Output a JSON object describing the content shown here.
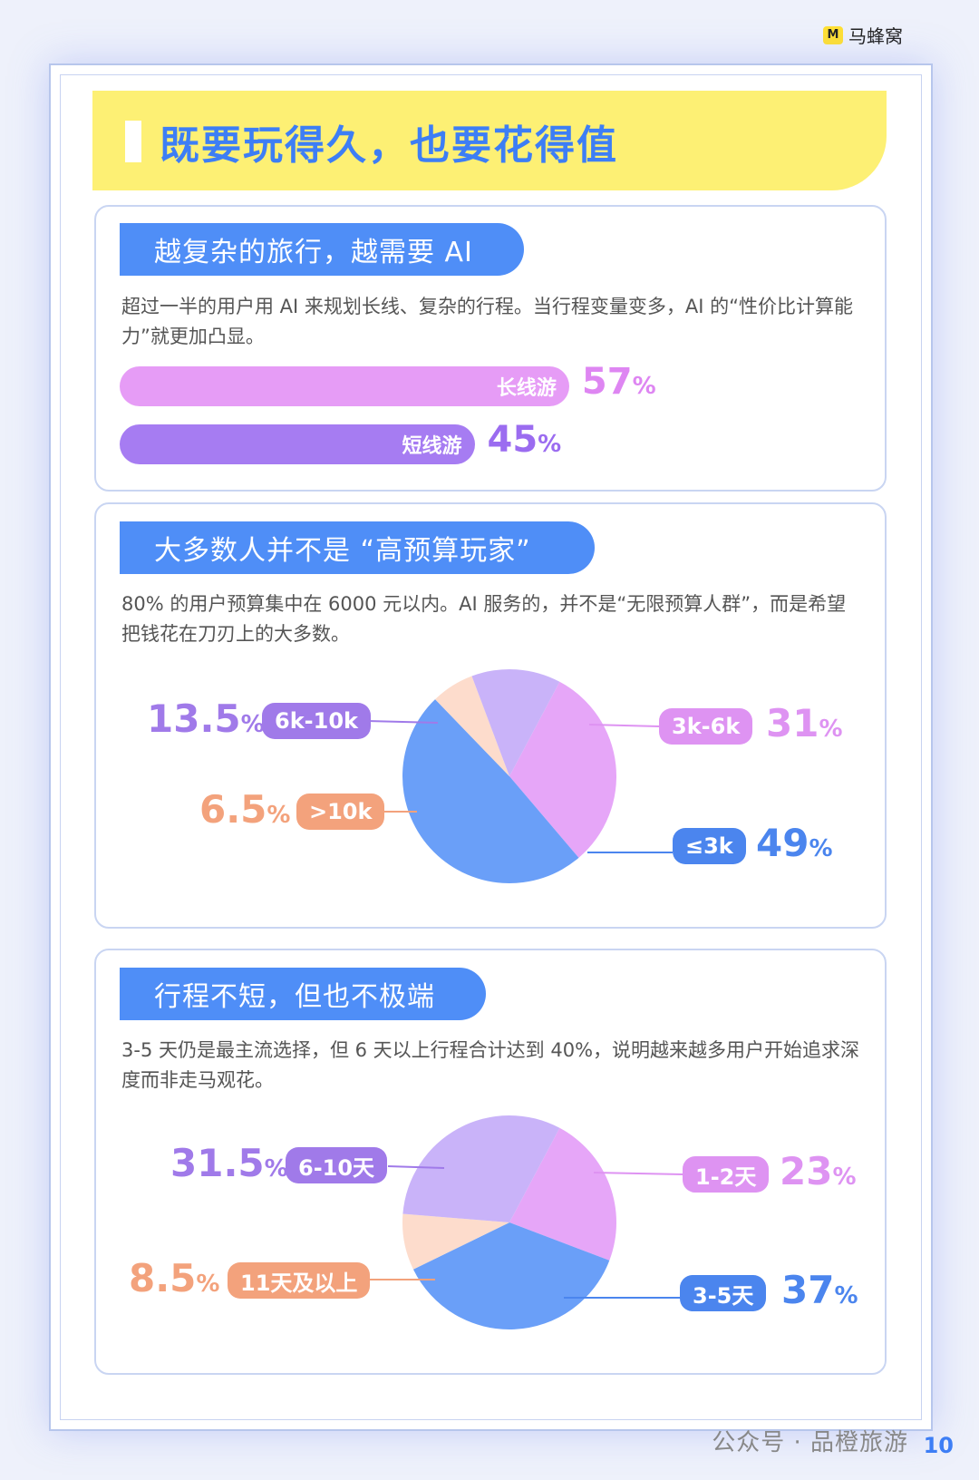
{
  "brand": {
    "icon_glyph": "M",
    "name": "马蜂窝"
  },
  "title": "既要玩得久，也要花得值",
  "section1": {
    "tag": "越复杂的旅行，越需要 AI",
    "desc": "超过一半的用户用 AI 来规划长线、复杂的行程。当行程变量变多，AI 的“性价比计算能力”就更加凸显。"
  },
  "section2": {
    "tag": "大多数人并不是 “高预算玩家”",
    "desc": "80% 的用户预算集中在 6000 元以内。AI 服务的，并不是“无限预算人群”，而是希望把钱花在刀刃上的大多数。"
  },
  "section3": {
    "tag": "行程不短，但也不极端",
    "desc": "3-5 天仍是最主流选择，但 6 天以上行程合计达到 40%，说明越来越多用户开始追求深度而非走马观花。"
  },
  "chart_data": [
    {
      "type": "bar",
      "categories": [
        "长线游",
        "短线游"
      ],
      "values": [
        57,
        45
      ],
      "unit": "%",
      "colors": [
        "#e69cf6",
        "#a67cf2"
      ]
    },
    {
      "type": "pie",
      "labels": [
        "3k-6k",
        "≤3k",
        ">10k",
        "6k-10k"
      ],
      "values": [
        31,
        49,
        6.5,
        13.5
      ],
      "unit": "%",
      "colors": [
        "#e6a6f8",
        "#6a9ff8",
        "#fddccc",
        "#c9b3f9"
      ],
      "label_colors": [
        "#de93f2",
        "#4b85ee",
        "#f3a27c",
        "#a07ae9"
      ]
    },
    {
      "type": "pie",
      "labels": [
        "1-2天",
        "3-5天",
        "11天及以上",
        "6-10天"
      ],
      "values": [
        23,
        37,
        8.5,
        31.5
      ],
      "unit": "%",
      "colors": [
        "#e6a6f8",
        "#6a9ff8",
        "#fddccc",
        "#c9b3f9"
      ],
      "label_colors": [
        "#de93f2",
        "#4b85ee",
        "#f3a27c",
        "#a07ae9"
      ]
    }
  ],
  "watermark": "公众号 · 品橙旅游",
  "page_number": "10"
}
